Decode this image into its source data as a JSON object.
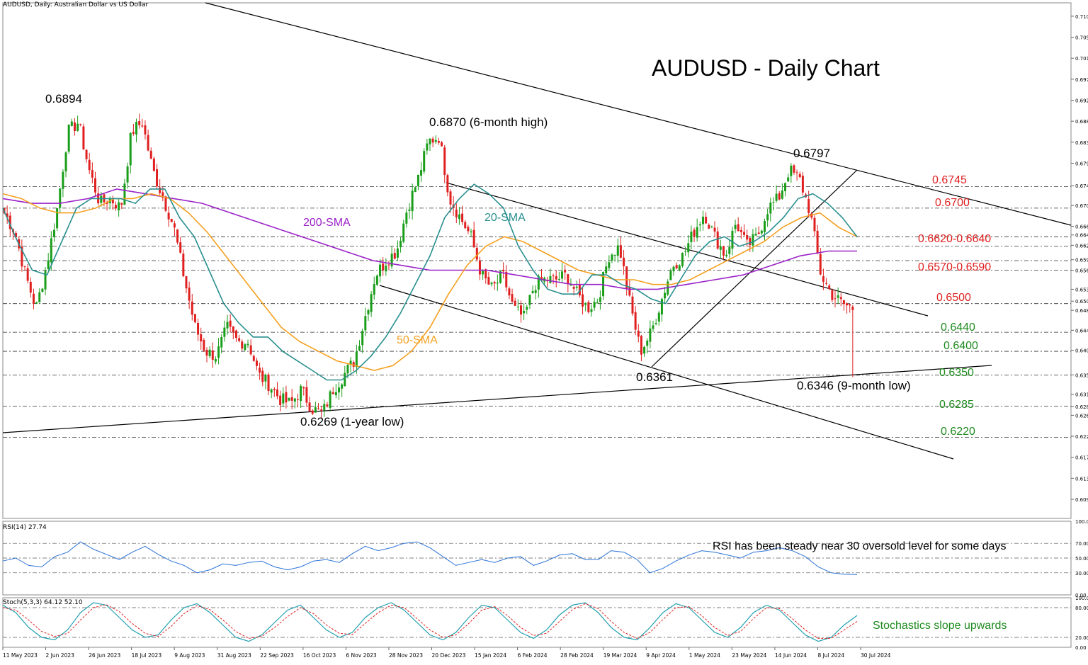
{
  "header": "AUDUSD, Daily:  Australian Dollar vs US Dollar",
  "title": "AUDUSD - Daily Chart",
  "colors": {
    "up_candle": "#1a9e1a",
    "down_candle": "#e02020",
    "sma20": "#2a8f8f",
    "sma50": "#f5a020",
    "sma200": "#9a22c8",
    "resistance": "#e02020",
    "support": "#1e8a1e",
    "rsi": "#2a72d8",
    "stoch_main": "#22a0b0",
    "stoch_signal": "#e02020"
  },
  "chart_data": [
    {
      "type": "candlestick",
      "title": "AUDUSD - Daily Chart",
      "ylim": [
        0.605,
        0.713
      ],
      "y_ticks": [
        "0.71020",
        "0.70580",
        "0.70140",
        "0.69700",
        "0.69260",
        "0.68820",
        "0.68380",
        "0.67940",
        "0.67469",
        "0.67054",
        "0.66620",
        "0.66438",
        "0.66221",
        "0.65919",
        "0.65697",
        "0.65300",
        "0.65051",
        "0.64860",
        "0.64441",
        "0.64024",
        "0.63507",
        "0.63100",
        "0.62842",
        "0.62660",
        "0.62221",
        "0.61780",
        "0.61340",
        "0.60900"
      ],
      "x_ticks": [
        "11 May 2023",
        "2 Jun 2023",
        "26 Jun 2023",
        "18 Jul 2023",
        "9 Aug 2023",
        "31 Aug 2023",
        "22 Sep 2023",
        "16 Oct 2023",
        "6 Nov 2023",
        "28 Nov 2023",
        "20 Dec 2023",
        "15 Jan 2024",
        "6 Feb 2024",
        "28 Feb 2024",
        "19 Mar 2024",
        "9 Apr 2024",
        "1 May 2024",
        "23 May 2024",
        "14 Jun 2024",
        "8 Jul 2024",
        "30 Jul 2024"
      ],
      "price_path": [
        0.669,
        0.665,
        0.656,
        0.649,
        0.658,
        0.67,
        0.686,
        0.688,
        0.678,
        0.671,
        0.672,
        0.67,
        0.686,
        0.688,
        0.678,
        0.672,
        0.666,
        0.655,
        0.645,
        0.64,
        0.639,
        0.645,
        0.642,
        0.642,
        0.635,
        0.633,
        0.63,
        0.629,
        0.632,
        0.628,
        0.627,
        0.632,
        0.635,
        0.638,
        0.647,
        0.656,
        0.659,
        0.661,
        0.67,
        0.676,
        0.684,
        0.685,
        0.672,
        0.668,
        0.664,
        0.656,
        0.653,
        0.656,
        0.649,
        0.647,
        0.654,
        0.655,
        0.655,
        0.656,
        0.652,
        0.649,
        0.651,
        0.66,
        0.662,
        0.65,
        0.64,
        0.644,
        0.651,
        0.658,
        0.66,
        0.665,
        0.669,
        0.664,
        0.66,
        0.667,
        0.662,
        0.664,
        0.67,
        0.672,
        0.678,
        0.676,
        0.669,
        0.656,
        0.652,
        0.65,
        0.649
      ],
      "sma20": [
        0.67,
        0.663,
        0.657,
        0.656,
        0.663,
        0.67,
        0.672,
        0.672,
        0.672,
        0.671,
        0.674,
        0.674,
        0.668,
        0.664,
        0.657,
        0.65,
        0.646,
        0.643,
        0.643,
        0.64,
        0.638,
        0.636,
        0.634,
        0.634,
        0.636,
        0.639,
        0.643,
        0.648,
        0.654,
        0.66,
        0.668,
        0.672,
        0.675,
        0.673,
        0.67,
        0.662,
        0.657,
        0.653,
        0.652,
        0.652,
        0.656,
        0.656,
        0.654,
        0.653,
        0.651,
        0.65,
        0.655,
        0.66,
        0.663,
        0.664,
        0.662,
        0.663,
        0.665,
        0.668,
        0.672,
        0.673,
        0.671,
        0.668,
        0.664
      ],
      "sma50": [
        0.673,
        0.672,
        0.67,
        0.669,
        0.669,
        0.67,
        0.672,
        0.672,
        0.673,
        0.672,
        0.669,
        0.665,
        0.66,
        0.655,
        0.65,
        0.645,
        0.642,
        0.64,
        0.638,
        0.637,
        0.636,
        0.637,
        0.64,
        0.645,
        0.652,
        0.658,
        0.662,
        0.664,
        0.663,
        0.661,
        0.659,
        0.657,
        0.656,
        0.655,
        0.655,
        0.654,
        0.654,
        0.655,
        0.657,
        0.659,
        0.661,
        0.663,
        0.666,
        0.668,
        0.669,
        0.666,
        0.664
      ],
      "sma200": [
        0.672,
        0.671,
        0.671,
        0.672,
        0.674,
        0.673,
        0.672,
        0.671,
        0.669,
        0.667,
        0.665,
        0.663,
        0.661,
        0.659,
        0.658,
        0.657,
        0.657,
        0.657,
        0.656,
        0.655,
        0.654,
        0.654,
        0.653,
        0.653,
        0.654,
        0.655,
        0.656,
        0.658,
        0.66,
        0.661,
        0.661
      ],
      "levels": [
        {
          "value": 0.6745,
          "label": "0.6745",
          "role": "resistance",
          "style": "dash-dot"
        },
        {
          "value": 0.67,
          "label": "0.6700",
          "role": "resistance",
          "style": "dash-dot"
        },
        {
          "value": 0.664,
          "label": "",
          "role": "resistance",
          "style": "dash-dot"
        },
        {
          "value": 0.662,
          "label": "0.6620-0.6640",
          "role": "resistance",
          "style": "dash-dot"
        },
        {
          "value": 0.659,
          "label": "",
          "role": "resistance",
          "style": "dash-dot"
        },
        {
          "value": 0.657,
          "label": "0.6570-0.6590",
          "role": "resistance",
          "style": "dash-dot"
        },
        {
          "value": 0.65,
          "label": "0.6500",
          "role": "resistance",
          "style": "dash-dot"
        },
        {
          "value": 0.644,
          "label": "0.6440",
          "role": "support",
          "style": "dash-dot"
        },
        {
          "value": 0.64,
          "label": "0.6400",
          "role": "support",
          "style": "dash-dot"
        },
        {
          "value": 0.635,
          "label": "0.6350",
          "role": "support",
          "style": "dash-dot"
        },
        {
          "value": 0.6285,
          "label": "0.6285",
          "role": "support",
          "style": "dash-dot"
        },
        {
          "value": 0.622,
          "label": "0.6220",
          "role": "support",
          "style": "dash-dot"
        }
      ],
      "annotations": [
        {
          "text": "0.6894",
          "near": "2 Jun 2023"
        },
        {
          "text": "0.6870 (6-month high)",
          "near": "20 Dec 2023"
        },
        {
          "text": "0.6797",
          "near": "8 Jul 2024"
        },
        {
          "text": "0.6361",
          "near": "9 Apr 2024"
        },
        {
          "text": "0.6346 (9-month low)",
          "near": "30 Jul 2024"
        },
        {
          "text": "0.6269 (1-year low)",
          "near": "16 Oct 2023"
        },
        {
          "text": "200-SMA",
          "series": "sma200"
        },
        {
          "text": "20-SMA",
          "series": "sma20"
        },
        {
          "text": "50-SMA",
          "series": "sma50"
        }
      ]
    },
    {
      "type": "line",
      "title": "RSI(14) 27.74",
      "ylim": [
        0,
        100
      ],
      "y_ticks": [
        "100.00",
        "70.00",
        "50.00",
        "30.00",
        "0.00"
      ],
      "series": [
        {
          "name": "RSI(14)",
          "values": [
            46,
            50,
            40,
            38,
            52,
            58,
            72,
            62,
            55,
            48,
            58,
            66,
            55,
            46,
            40,
            30,
            34,
            42,
            40,
            44,
            46,
            38,
            34,
            38,
            46,
            48,
            44,
            56,
            66,
            60,
            64,
            70,
            72,
            64,
            52,
            40,
            44,
            48,
            44,
            50,
            52,
            40,
            46,
            54,
            56,
            48,
            48,
            60,
            58,
            48,
            30,
            36,
            46,
            54,
            60,
            58,
            54,
            50,
            58,
            60,
            64,
            60,
            52,
            38,
            30,
            28,
            27.74
          ]
        }
      ],
      "annotation": "RSI has been steady near 30 oversold level for some days"
    },
    {
      "type": "line",
      "title": "Stoch(5,3,3) 64.12 52.10",
      "ylim": [
        0,
        100
      ],
      "y_ticks": [
        "100.00",
        "80.00",
        "20.00",
        "0.00"
      ],
      "series": [
        {
          "name": "%K",
          "values": [
            85,
            70,
            40,
            20,
            15,
            35,
            70,
            90,
            85,
            60,
            35,
            20,
            25,
            55,
            80,
            88,
            70,
            45,
            20,
            12,
            25,
            50,
            75,
            85,
            60,
            35,
            20,
            30,
            60,
            80,
            90,
            75,
            50,
            25,
            15,
            30,
            60,
            85,
            80,
            55,
            30,
            18,
            35,
            65,
            85,
            90,
            70,
            40,
            20,
            15,
            40,
            70,
            88,
            80,
            55,
            30,
            20,
            40,
            70,
            85,
            75,
            50,
            25,
            12,
            20,
            45,
            64.12
          ]
        },
        {
          "name": "%D",
          "values": [
            80,
            75,
            55,
            32,
            22,
            28,
            55,
            80,
            86,
            72,
            48,
            28,
            22,
            42,
            68,
            84,
            76,
            55,
            32,
            18,
            22,
            40,
            62,
            80,
            68,
            45,
            28,
            26,
            48,
            70,
            85,
            80,
            58,
            35,
            20,
            25,
            48,
            75,
            82,
            64,
            40,
            24,
            28,
            52,
            76,
            88,
            78,
            52,
            30,
            18,
            30,
            56,
            80,
            82,
            64,
            40,
            24,
            32,
            58,
            80,
            78,
            58,
            35,
            18,
            18,
            35,
            52.1
          ]
        }
      ],
      "annotation": "Stochastics slope upwards"
    }
  ]
}
